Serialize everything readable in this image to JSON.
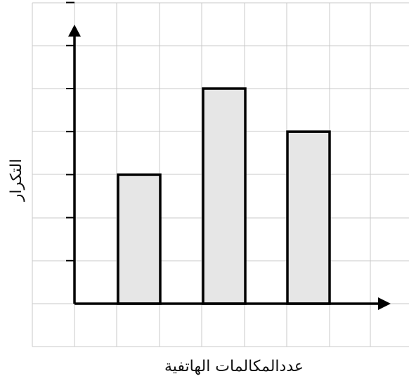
{
  "chart_data": {
    "type": "bar",
    "xlabel": "عددالمكالمات الهاتفية",
    "ylabel": "التكرار",
    "values": [
      3,
      5,
      4
    ],
    "ylim": [
      0,
      7
    ],
    "grid": true,
    "colors": {
      "bar_fill": "#e6e6e6",
      "bar_stroke": "#000000",
      "grid": "#c8c8c8",
      "axis": "#000000"
    }
  }
}
